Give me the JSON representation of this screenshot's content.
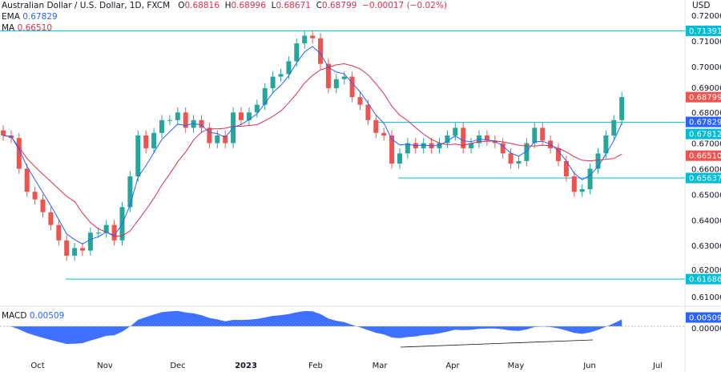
{
  "header": {
    "title": "Australian Dollar / U.S. Dollar, 1D, FXCM",
    "o_label": "O",
    "o": "0.68816",
    "h_label": "H",
    "h": "0.68996",
    "l_label": "L",
    "l": "0.68671",
    "c_label": "C",
    "c": "0.68799",
    "change": "−0.00017 (−0.02%)"
  },
  "ema": {
    "label": "EMA",
    "value": "0.67829"
  },
  "ma": {
    "label": "MA",
    "value": "0.66510"
  },
  "macd": {
    "label": "MACD",
    "value": "0.00509",
    "tag": "0.00509",
    "zero": "0.00000"
  },
  "currency": "USD",
  "colors": {
    "up": "#26a69a",
    "down": "#ef5350",
    "ema": "#2962ff",
    "ma": "#d9304f",
    "level": "#00bcd4",
    "macd": "#2962ff"
  },
  "chart_data": {
    "type": "candlestick",
    "ylim": [
      0.605,
      0.725
    ],
    "yticks": [
      "0.72000",
      "0.71000",
      "0.70000",
      "0.69000",
      "0.68000",
      "0.67000",
      "0.66000",
      "0.65000",
      "0.64000",
      "0.63000",
      "0.62000",
      "0.61000"
    ],
    "xticks": [
      "Oct",
      "Nov",
      "Dec",
      "2023",
      "Feb",
      "Mar",
      "Apr",
      "May",
      "Jun",
      "Jul"
    ],
    "close": [
      0.673,
      0.672,
      0.66,
      0.651,
      0.648,
      0.643,
      0.638,
      0.632,
      0.626,
      0.629,
      0.628,
      0.635,
      0.635,
      0.638,
      0.632,
      0.645,
      0.657,
      0.673,
      0.668,
      0.674,
      0.679,
      0.679,
      0.682,
      0.676,
      0.679,
      0.676,
      0.67,
      0.673,
      0.67,
      0.682,
      0.679,
      0.682,
      0.685,
      0.6915,
      0.696,
      0.697,
      0.702,
      0.709,
      0.712,
      0.711,
      0.701,
      0.6915,
      0.695,
      0.696,
      0.688,
      0.685,
      0.679,
      0.674,
      0.673,
      0.662,
      0.666,
      0.67,
      0.668,
      0.67,
      0.668,
      0.67,
      0.673,
      0.676,
      0.668,
      0.67,
      0.673,
      0.671,
      0.67,
      0.666,
      0.662,
      0.663,
      0.67,
      0.676,
      0.671,
      0.668,
      0.663,
      0.657,
      0.651,
      0.652,
      0.66,
      0.666,
      0.673,
      0.679,
      0.688
    ],
    "levels": [
      {
        "value": 0.71391,
        "label": "0.71391"
      },
      {
        "value": 0.67812,
        "label": "0.67812"
      },
      {
        "value": 0.65637,
        "label": "0.65637"
      },
      {
        "value": 0.61686,
        "label": "0.61686"
      }
    ],
    "price_tags": [
      {
        "value": 0.68799,
        "label": "0.68799",
        "kind": "last"
      },
      {
        "value": 0.67829,
        "label": "0.67829",
        "kind": "ema"
      },
      {
        "value": 0.6651,
        "label": "0.66510",
        "kind": "ma"
      }
    ]
  }
}
